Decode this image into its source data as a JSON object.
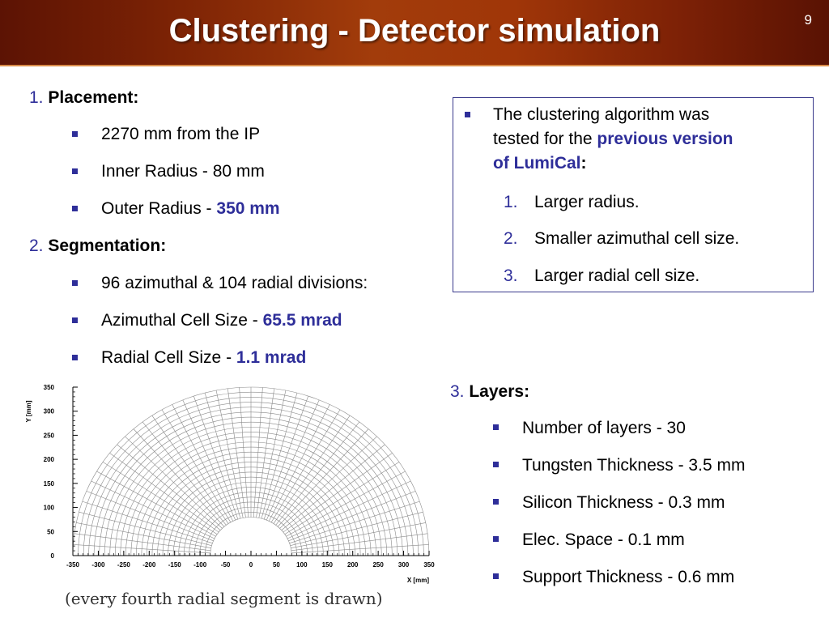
{
  "header": {
    "title": "Clustering - Detector simulation",
    "slide_number": "9"
  },
  "left": {
    "placement": {
      "num": "1.",
      "heading": "Placement:",
      "b1": "2270 mm from the IP",
      "b2": "Inner Radius -  80 mm",
      "b3_text": "Outer Radius - ",
      "b3_value": "350 mm"
    },
    "segmentation": {
      "num": "2.",
      "heading": "Segmentation:",
      "b1": "96 azimuthal & 104 radial divisions:",
      "b2_text": "Azimuthal Cell Size - ",
      "b2_value": "65.5 mrad",
      "b3_text": "Radial Cell Size - ",
      "b3_value": "1.1 mrad"
    }
  },
  "box": {
    "line1": "The clustering algorithm was",
    "line2_text": "tested for the ",
    "line2_hl": "previous version",
    "line3_hl": "of LumiCal",
    "line3_tail": ":",
    "items": [
      {
        "num": "1.",
        "text": "Larger radius."
      },
      {
        "num": "2.",
        "text": "Smaller azimuthal cell size."
      },
      {
        "num": "3.",
        "text": "Larger radial cell size."
      }
    ]
  },
  "layers": {
    "num": "3.",
    "heading": "Layers:",
    "items": [
      "Number of layers - 30",
      "Tungsten Thickness - 3.5 mm",
      "Silicon Thickness - 0.3 mm",
      "Elec. Space - 0.1 mm",
      "Support Thickness - 0.6 mm"
    ]
  },
  "chart_data": {
    "type": "diagram",
    "xlabel": "X [mm]",
    "ylabel": "Y [mm]",
    "xlim": [
      -350,
      350
    ],
    "ylim": [
      0,
      350
    ],
    "x_ticks": [
      "-350",
      "-300",
      "-250",
      "-200",
      "-150",
      "-100",
      "-50",
      "0",
      "50",
      "100",
      "150",
      "200",
      "250",
      "300",
      "350"
    ],
    "y_ticks": [
      "0",
      "50",
      "100",
      "150",
      "200",
      "250",
      "300",
      "350"
    ],
    "inner_radius": 80,
    "outer_radius": 350,
    "azimuthal_divisions": 96,
    "radial_divisions": 104,
    "radial_step_drawn": 4
  },
  "caption": "(every fourth radial segment is drawn)"
}
